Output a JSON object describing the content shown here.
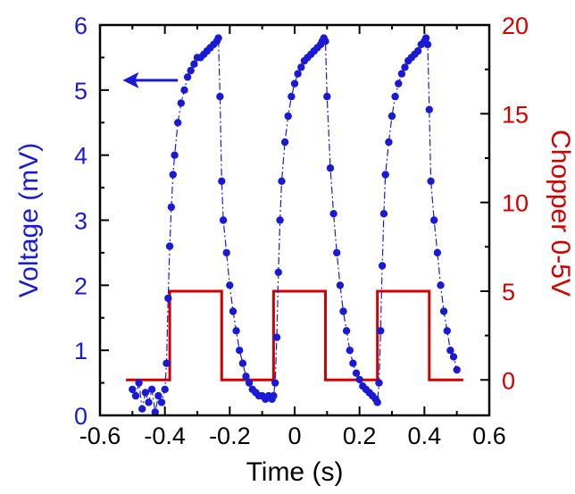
{
  "chart_data": {
    "type": "line",
    "title": "",
    "xlabel": "Time (s)",
    "ylabel_left": "Voltage (mV)",
    "ylabel_right": "Chopper 0-5V",
    "xlim": [
      -0.6,
      0.6
    ],
    "ylim_left": [
      0,
      6
    ],
    "ylim_right": [
      -2,
      20
    ],
    "grid": false,
    "x_ticks": [
      "-0.6",
      "-0.4",
      "-0.2",
      "0",
      "0.2",
      "0.4",
      "0.6"
    ],
    "y_left_ticks": [
      "0",
      "1",
      "2",
      "3",
      "4",
      "5",
      "6"
    ],
    "y_right_ticks": [
      "0",
      "5",
      "10",
      "15",
      "20"
    ],
    "annotation": "arrow pointing left toward the Voltage axis",
    "colors": {
      "voltage": "#1a1ad6",
      "chopper": "#d40000",
      "axes": "#000000"
    },
    "series": [
      {
        "name": "Voltage (mV)",
        "axis": "left",
        "style": "dots-dashdot",
        "x": [
          -0.5,
          -0.49,
          -0.48,
          -0.47,
          -0.46,
          -0.45,
          -0.44,
          -0.43,
          -0.42,
          -0.41,
          -0.4,
          -0.395,
          -0.39,
          -0.385,
          -0.38,
          -0.375,
          -0.37,
          -0.36,
          -0.35,
          -0.34,
          -0.33,
          -0.32,
          -0.31,
          -0.3,
          -0.29,
          -0.28,
          -0.27,
          -0.26,
          -0.25,
          -0.24,
          -0.235,
          -0.23,
          -0.225,
          -0.22,
          -0.21,
          -0.2,
          -0.19,
          -0.18,
          -0.17,
          -0.16,
          -0.15,
          -0.14,
          -0.13,
          -0.12,
          -0.11,
          -0.1,
          -0.09,
          -0.08,
          -0.07,
          -0.065,
          -0.06,
          -0.055,
          -0.05,
          -0.045,
          -0.04,
          -0.03,
          -0.02,
          -0.01,
          0.0,
          0.01,
          0.02,
          0.03,
          0.04,
          0.05,
          0.06,
          0.07,
          0.08,
          0.085,
          0.09,
          0.095,
          0.1,
          0.11,
          0.12,
          0.13,
          0.14,
          0.15,
          0.16,
          0.17,
          0.18,
          0.19,
          0.2,
          0.21,
          0.22,
          0.23,
          0.24,
          0.25,
          0.255,
          0.26,
          0.265,
          0.27,
          0.275,
          0.28,
          0.29,
          0.3,
          0.31,
          0.32,
          0.33,
          0.34,
          0.35,
          0.36,
          0.37,
          0.38,
          0.39,
          0.4,
          0.405,
          0.41,
          0.415,
          0.42,
          0.43,
          0.44,
          0.45,
          0.46,
          0.47,
          0.48,
          0.49,
          0.5
        ],
        "y": [
          0.4,
          0.3,
          0.5,
          0.1,
          0.35,
          0.2,
          0.4,
          0.05,
          0.3,
          0.2,
          0.4,
          0.8,
          1.8,
          2.6,
          3.2,
          3.7,
          4.0,
          4.5,
          4.8,
          5.0,
          5.2,
          5.3,
          5.4,
          5.5,
          5.5,
          5.55,
          5.6,
          5.65,
          5.7,
          5.75,
          5.8,
          4.9,
          3.6,
          3.0,
          2.5,
          2.0,
          1.6,
          1.3,
          1.0,
          0.8,
          0.6,
          0.5,
          0.4,
          0.35,
          0.3,
          0.3,
          0.25,
          0.3,
          0.25,
          0.3,
          0.5,
          1.2,
          2.2,
          3.0,
          3.6,
          4.2,
          4.6,
          4.9,
          5.1,
          5.25,
          5.35,
          5.45,
          5.5,
          5.55,
          5.6,
          5.65,
          5.7,
          5.75,
          5.8,
          5.75,
          4.9,
          3.8,
          3.1,
          2.5,
          2.0,
          1.6,
          1.3,
          1.0,
          0.8,
          0.65,
          0.55,
          0.45,
          0.4,
          0.35,
          0.3,
          0.25,
          0.2,
          0.5,
          1.3,
          2.3,
          3.1,
          3.7,
          4.2,
          4.6,
          4.9,
          5.1,
          5.25,
          5.35,
          5.45,
          5.5,
          5.55,
          5.6,
          5.7,
          5.75,
          5.8,
          5.7,
          4.7,
          3.6,
          3.0,
          2.5,
          2.0,
          1.6,
          1.3,
          1.0,
          0.9,
          0.7
        ]
      },
      {
        "name": "Chopper 0-5V",
        "axis": "right",
        "style": "step-line",
        "x": [
          -0.52,
          -0.385,
          -0.385,
          -0.225,
          -0.225,
          -0.065,
          -0.065,
          0.095,
          0.095,
          0.255,
          0.255,
          0.415,
          0.415,
          0.52
        ],
        "y": [
          0,
          0,
          5,
          5,
          0,
          0,
          5,
          5,
          0,
          0,
          5,
          5,
          0,
          0
        ]
      }
    ]
  }
}
